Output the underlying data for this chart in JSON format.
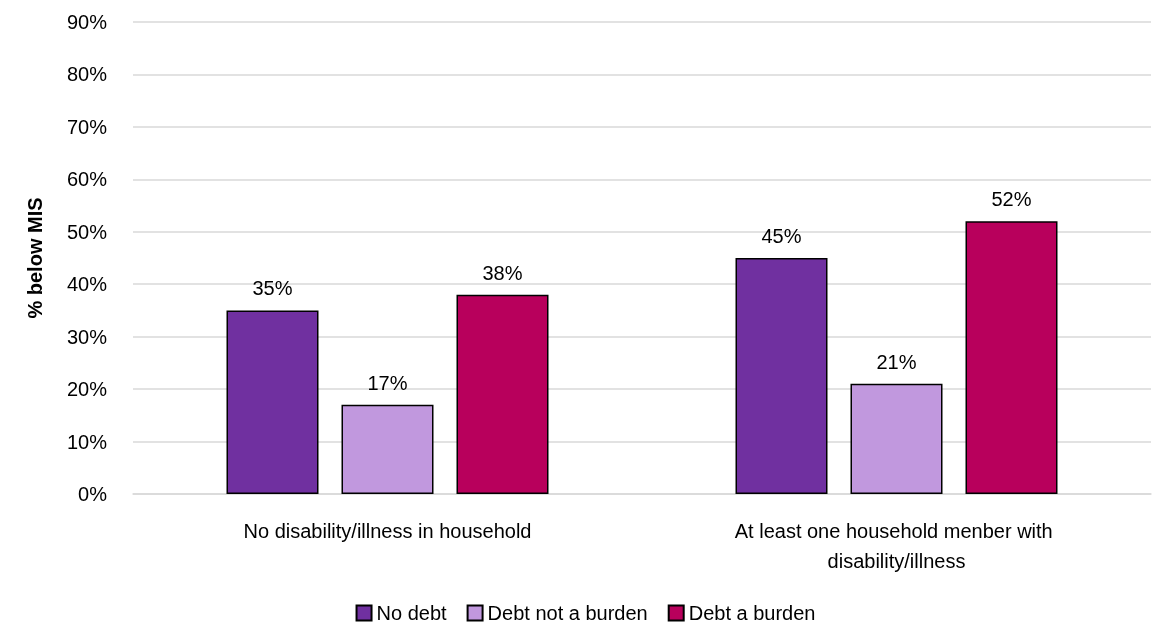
{
  "chart_data": {
    "type": "bar",
    "ylabel": "% below MIS",
    "categories": [
      "No disability/illness in household",
      "At least one household menber with disability/illness"
    ],
    "series": [
      {
        "name": "No debt",
        "color": "#7030a0",
        "values": [
          35,
          45
        ],
        "value_labels": [
          "35%",
          "45%"
        ]
      },
      {
        "name": "Debt not a burden",
        "color": "#c198de",
        "values": [
          17,
          21
        ],
        "value_labels": [
          "17%",
          "21%"
        ]
      },
      {
        "name": "Debt a burden",
        "color": "#b8005c",
        "values": [
          38,
          52
        ],
        "value_labels": [
          "38%",
          "52%"
        ]
      }
    ],
    "ylim": [
      0,
      90
    ],
    "yticks": [
      {
        "value": 0,
        "label": "0%"
      },
      {
        "value": 10,
        "label": "10%"
      },
      {
        "value": 20,
        "label": "20%"
      },
      {
        "value": 30,
        "label": "30%"
      },
      {
        "value": 40,
        "label": "40%"
      },
      {
        "value": 50,
        "label": "50%"
      },
      {
        "value": 60,
        "label": "60%"
      },
      {
        "value": 70,
        "label": "70%"
      },
      {
        "value": 80,
        "label": "80%"
      },
      {
        "value": 90,
        "label": "90%"
      }
    ],
    "grid": "y",
    "legend": "bottom"
  }
}
